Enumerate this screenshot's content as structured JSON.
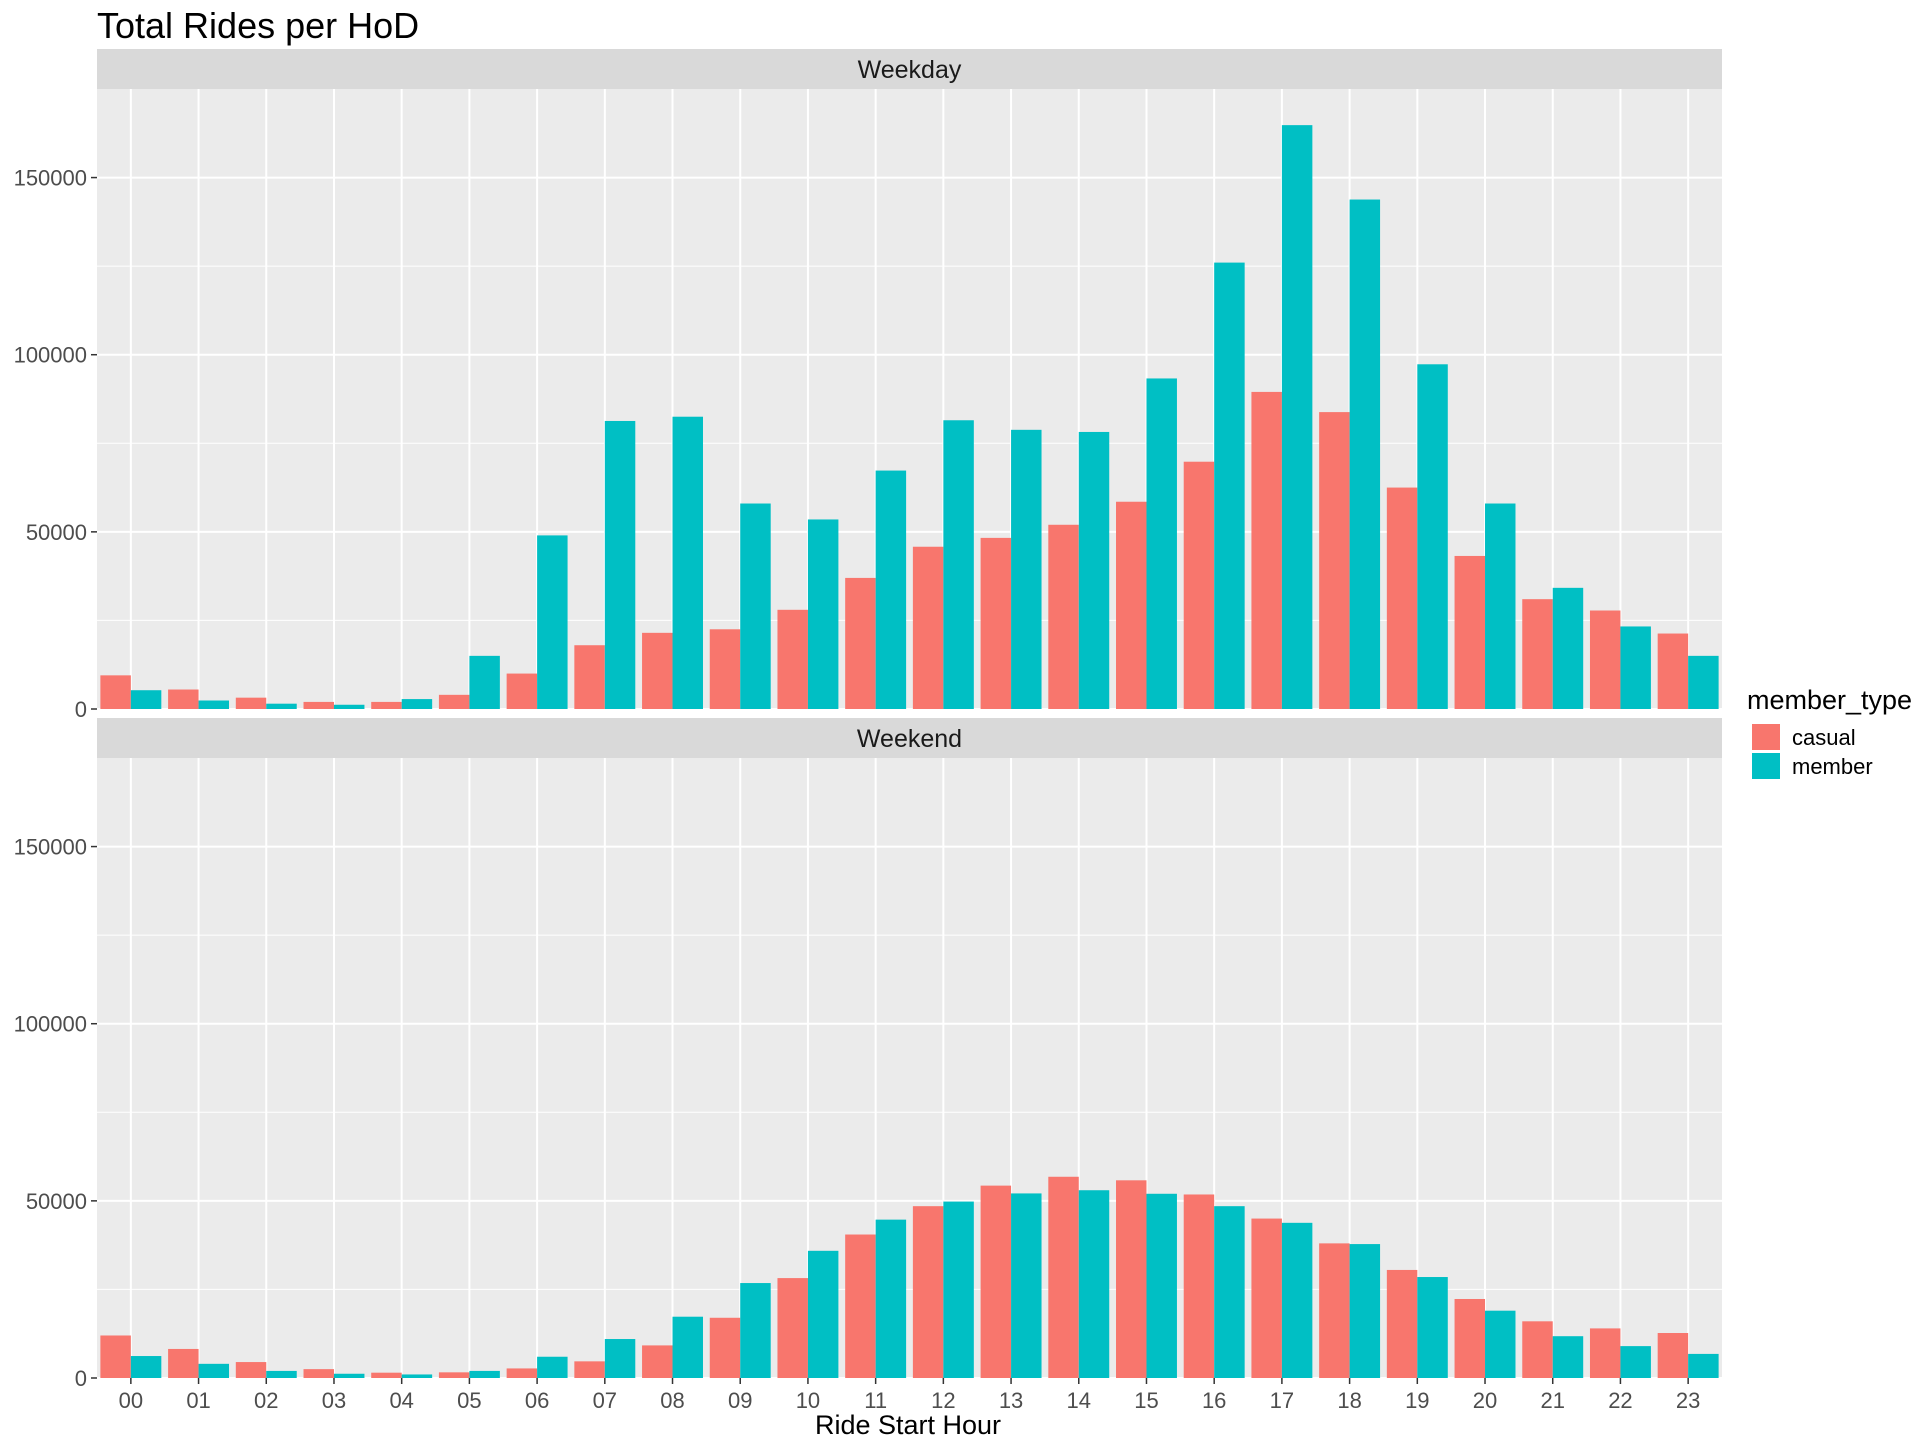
{
  "chart_data": {
    "type": "bar",
    "title": "Total Rides per HoD",
    "xlabel": "Ride Start Hour",
    "ylabel": "",
    "ylim": [
      0,
      175000
    ],
    "yticks": [
      0,
      50000,
      100000,
      150000
    ],
    "ytick_labels": [
      "0",
      "50000",
      "100000",
      "150000"
    ],
    "grid": true,
    "legend": {
      "title": "member_type",
      "position": "right",
      "entries": [
        {
          "name": "casual",
          "color": "#F8766D"
        },
        {
          "name": "member",
          "color": "#00BFC4"
        }
      ]
    },
    "categories": [
      "00",
      "01",
      "02",
      "03",
      "04",
      "05",
      "06",
      "07",
      "08",
      "09",
      "10",
      "11",
      "12",
      "13",
      "14",
      "15",
      "16",
      "17",
      "18",
      "19",
      "20",
      "21",
      "22",
      "23"
    ],
    "panels": [
      {
        "label": "Weekday",
        "series": [
          {
            "name": "casual",
            "values": [
              9500,
              5500,
              3200,
              2000,
              2000,
              4000,
              10000,
              18000,
              21500,
              22500,
              28000,
              37000,
              45800,
              48300,
              52000,
              58500,
              69800,
              89500,
              83800,
              62500,
              43200,
              31000,
              27800,
              21300
            ]
          },
          {
            "name": "member",
            "values": [
              5300,
              2400,
              1500,
              1200,
              2800,
              15000,
              49000,
              81300,
              82500,
              58000,
              53500,
              67300,
              81500,
              78800,
              78200,
              93300,
              126000,
              164800,
              143800,
              97300,
              58000,
              34200,
              23300,
              15000
            ]
          }
        ]
      },
      {
        "label": "Weekend",
        "series": [
          {
            "name": "casual",
            "values": [
              12000,
              8200,
              4500,
              2500,
              1500,
              1600,
              2700,
              4700,
              9200,
              17000,
              28200,
              40500,
              48500,
              54300,
              56800,
              55800,
              51800,
              45000,
              38000,
              30500,
              22300,
              16000,
              14000,
              12700
            ]
          },
          {
            "name": "member",
            "values": [
              6200,
              4000,
              2000,
              1200,
              1000,
              2000,
              6000,
              11000,
              17300,
              26800,
              35900,
              44700,
              49800,
              52100,
              53000,
              52000,
              48500,
              43800,
              37800,
              28500,
              19000,
              11800,
              9000,
              6800
            ]
          }
        ]
      }
    ]
  }
}
